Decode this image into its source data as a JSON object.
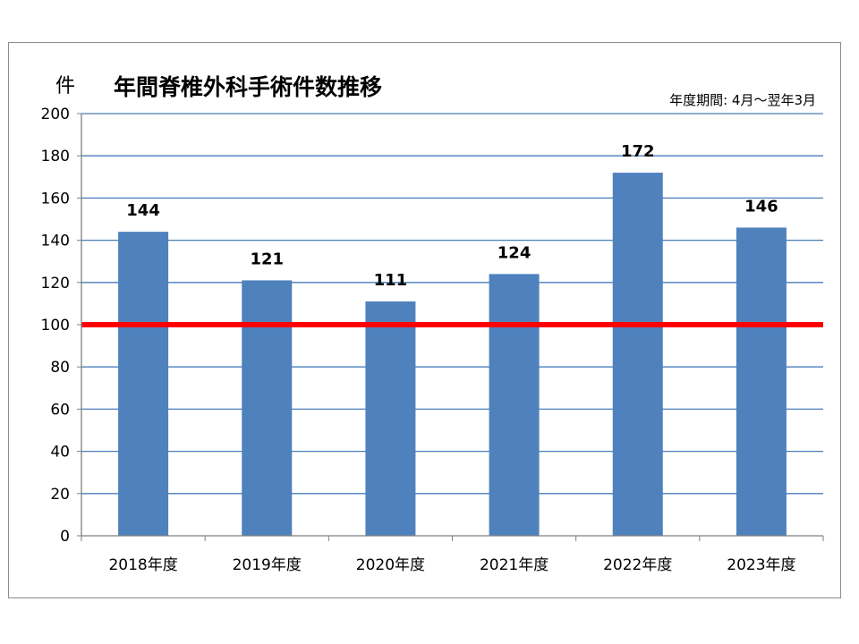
{
  "chart_data": {
    "type": "bar",
    "title": "年間脊椎外科手術件数推移",
    "unit_label": "件",
    "note": "年度期間: 4月～翌年3月",
    "categories": [
      "2018年度",
      "2019年度",
      "2020年度",
      "2021年度",
      "2022年度",
      "2023年度"
    ],
    "series": [
      {
        "values": [
          144,
          121,
          111,
          124,
          172,
          146
        ]
      }
    ],
    "ylim": [
      0,
      200
    ],
    "yticks": [
      0,
      20,
      40,
      60,
      80,
      100,
      120,
      140,
      160,
      180,
      200
    ],
    "grid": true,
    "reference_line": {
      "value": 100
    },
    "colors": {
      "bar": "#4f81bd",
      "grid": "#4a7ebb",
      "reference": "#ff0000",
      "axis": "#808080"
    }
  }
}
